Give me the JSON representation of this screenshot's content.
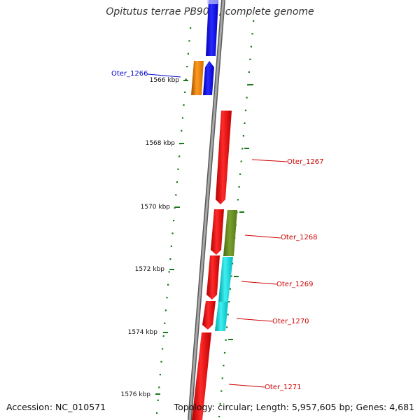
{
  "title": "Opitutus terrae PB90-1, complete genome",
  "footer": {
    "accession": "Accession: NC_010571",
    "summary": "Topology: circular; Length: 5,957,605 bp; Genes: 4,681"
  },
  "colors": {
    "backbone": "#888888",
    "tick": "#1a7a1a",
    "label_blue": "#0000cc",
    "label_red": "#cc0000"
  },
  "ticks": [
    {
      "label": "1566 kbp"
    },
    {
      "label": "1568 kbp"
    },
    {
      "label": "1570 kbp"
    },
    {
      "label": "1572 kbp"
    },
    {
      "label": "1574 kbp"
    },
    {
      "label": "1576 kbp"
    }
  ],
  "genes": [
    {
      "name": "Oter_1266",
      "color": "#ff8c00",
      "strand": "reverse",
      "label_color": "#0000cc"
    },
    {
      "name": "Oter_1267",
      "color": "#ff0000",
      "strand": "reverse",
      "label_color": "#cc0000"
    },
    {
      "name": "Oter_1268",
      "color": "#6b8e23",
      "strand": "forward",
      "label_color": "#cc0000"
    },
    {
      "name": "Oter_1269",
      "color": "#00ced1",
      "strand": "forward",
      "label_color": "#cc0000"
    },
    {
      "name": "Oter_1270",
      "color": "#00ced1",
      "strand": "forward",
      "label_color": "#cc0000"
    },
    {
      "name": "Oter_1271",
      "color": "#ff0000",
      "strand": "reverse",
      "label_color": "#cc0000"
    }
  ]
}
